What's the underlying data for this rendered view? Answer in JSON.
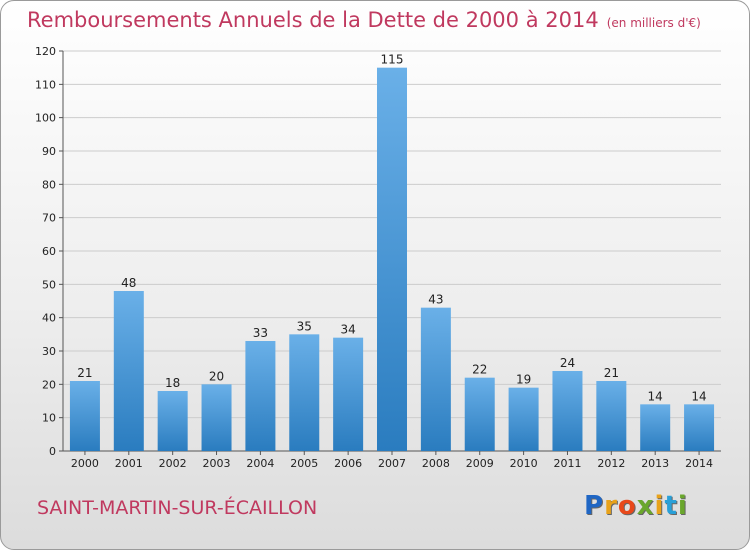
{
  "chart_data": {
    "type": "bar",
    "title": "Remboursements Annuels de la Dette de 2000 à 2014",
    "unit": "(en milliers d'€)",
    "categories": [
      "2000",
      "2001",
      "2002",
      "2003",
      "2004",
      "2005",
      "2006",
      "2007",
      "2008",
      "2009",
      "2010",
      "2011",
      "2012",
      "2013",
      "2014"
    ],
    "values": [
      21,
      48,
      18,
      20,
      33,
      35,
      34,
      115,
      43,
      22,
      19,
      24,
      21,
      14,
      14
    ],
    "ylim": [
      0,
      120
    ],
    "yticks": [
      0,
      10,
      20,
      30,
      40,
      50,
      60,
      70,
      80,
      90,
      100,
      110,
      120
    ],
    "grid": true,
    "colors": {
      "bar_light": "#6ab0e8",
      "bar_dark": "#2a7cbf",
      "title": "#c0395f",
      "grid": "#cccccc"
    }
  },
  "commune": "SAINT-MARTIN-SUR-ÉCAILLON",
  "logo": {
    "letters": [
      "P",
      "r",
      "o",
      "x",
      "i",
      "t",
      "i"
    ],
    "colors": [
      "#1f66c4",
      "#e8a21a",
      "#e8481a",
      "#6aa72c",
      "#e8a21a",
      "#29a0d8",
      "#6aa72c"
    ]
  }
}
